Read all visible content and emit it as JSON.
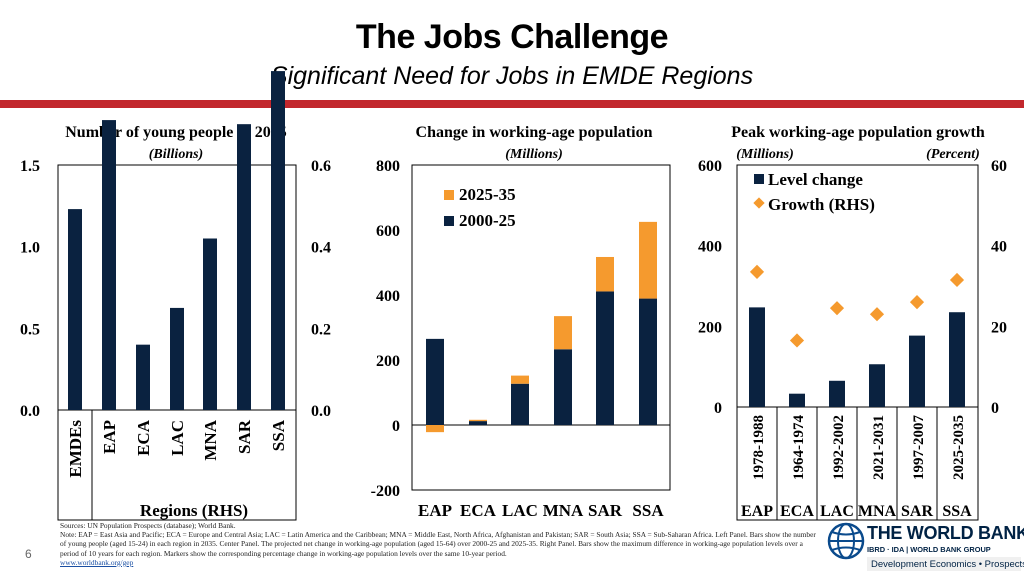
{
  "header": {
    "title": "The Jobs Challenge",
    "subtitle": "Significant Need for Jobs in EMDE Regions"
  },
  "colors": {
    "navy": "#0a2240",
    "orange": "#f59a2e",
    "red_rule": "#c2272d"
  },
  "chart_data": [
    {
      "type": "bar",
      "title": "Number of young people in 2035",
      "subtitle": "(Billions)",
      "xlabel": "Regions (RHS)",
      "categories": [
        "EMDEs",
        "EAP",
        "ECA",
        "LAC",
        "MNA",
        "SAR",
        "SSA"
      ],
      "series": [
        {
          "values": [
            1.23,
            0.71,
            0.16,
            0.25,
            0.42,
            0.7,
            0.83
          ]
        }
      ],
      "ylim": [
        0,
        1.5
      ],
      "y_ticks": [
        "0.0",
        "0.5",
        "1.0",
        "1.5"
      ],
      "y2lim": [
        0,
        0.6
      ],
      "y2_ticks": [
        "0.0",
        "0.2",
        "0.4",
        "0.6"
      ]
    },
    {
      "type": "bar",
      "stacked": true,
      "title": "Change in working-age population",
      "subtitle": "(Millions)",
      "categories": [
        "EAP",
        "ECA",
        "LAC",
        "MNA",
        "SAR",
        "SSA"
      ],
      "series": [
        {
          "name": "2000-25",
          "values": [
            265,
            12,
            127,
            233,
            411,
            389
          ]
        },
        {
          "name": "2025-35",
          "values": [
            -22,
            4,
            25,
            102,
            106,
            236
          ]
        }
      ],
      "legend_order": [
        "2025-35",
        "2000-25"
      ],
      "legend": "top-left",
      "ylim": [
        -200,
        800
      ],
      "y_ticks": [
        "-200",
        "0",
        "200",
        "400",
        "600",
        "800"
      ]
    },
    {
      "type": "bar",
      "title": "Peak working-age population growth",
      "left_unit": "(Millions)",
      "right_unit": "(Percent)",
      "groups": [
        "EAP",
        "ECA",
        "LAC",
        "MNA",
        "SAR",
        "SSA"
      ],
      "categories": [
        "1978-1988",
        "1964-1974",
        "1992-2002",
        "2021-2031",
        "1997-2007",
        "2025-2035"
      ],
      "series": [
        {
          "name": "Level change",
          "axis": "left",
          "values": [
            247,
            33,
            65,
            106,
            177,
            235
          ]
        },
        {
          "name": "Growth (RHS)",
          "axis": "right",
          "type": "scatter",
          "values": [
            33.5,
            16.5,
            24.5,
            23,
            26,
            31.5
          ]
        }
      ],
      "legend": "top-left",
      "ylim": [
        0,
        600
      ],
      "y_ticks": [
        "0",
        "200",
        "400",
        "600"
      ],
      "y2lim": [
        0,
        60
      ],
      "y2_ticks": [
        "0",
        "20",
        "40",
        "60"
      ]
    }
  ],
  "footer": {
    "sources": "Sources: UN Population Prospects (database); World Bank.",
    "note": "Note: EAP = East Asia and Pacific; ECA = Europe and Central Asia; LAC = Latin America and the Caribbean; MNA = Middle East, North Africa, Afghanistan and Pakistan; SAR = South Asia; SSA = Sub-Saharan Africa. Left Panel. Bars show the number of young people (aged 15-24) in each region in 2035. Center Panel. The projected net change in working-age population (aged 15-64) over 2000-25 and 2025-35. Right Panel. Bars show the maximum difference in working-age population levels over a period of 10 years for each region. Markers show the corresponding percentage change in working-age population levels over the same 10-year period.",
    "link": "www.worldbank.org/gep",
    "page_number": "6"
  },
  "logo": {
    "name": "THE WORLD BANK",
    "sub": "IBRD · IDA | WORLD BANK GROUP",
    "department": "Development Economics • Prospects"
  }
}
